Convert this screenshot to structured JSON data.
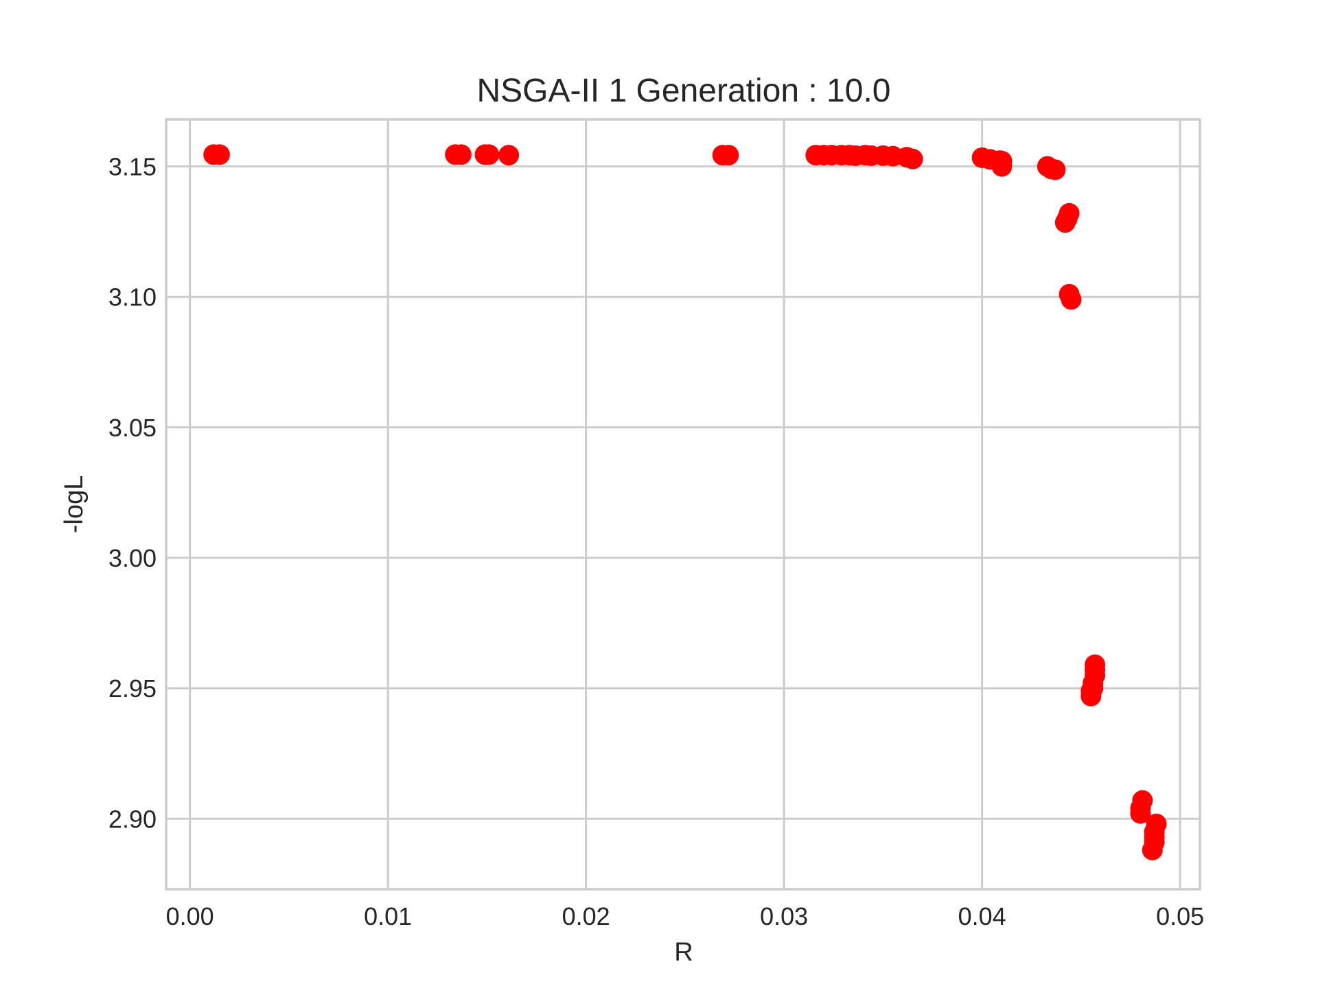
{
  "chart_data": {
    "type": "scatter",
    "title": "NSGA-II 1 Generation : 10.0",
    "xlabel": "R",
    "ylabel": "-logL",
    "xlim": [
      -0.0012,
      0.051
    ],
    "ylim": [
      2.873,
      3.168
    ],
    "xticks": [
      0.0,
      0.01,
      0.02,
      0.03,
      0.04,
      0.05
    ],
    "xtick_labels": [
      "0.00",
      "0.01",
      "0.02",
      "0.03",
      "0.04",
      "0.05"
    ],
    "yticks": [
      2.9,
      2.95,
      3.0,
      3.05,
      3.1,
      3.15
    ],
    "ytick_labels": [
      "2.90",
      "2.95",
      "3.00",
      "3.05",
      "3.10",
      "3.15"
    ],
    "grid": true,
    "legend": null,
    "marker_color": "#ff0000",
    "series": [
      {
        "x": [
          0.0012,
          0.0015,
          0.0134,
          0.0137,
          0.0149,
          0.0151,
          0.0161,
          0.0269,
          0.0272,
          0.0316,
          0.032,
          0.0324,
          0.0329,
          0.0333,
          0.0336,
          0.0341,
          0.0344,
          0.035,
          0.0355,
          0.0362,
          0.0365,
          0.04,
          0.0404,
          0.0409,
          0.041,
          0.041,
          0.0433,
          0.0435,
          0.0437,
          0.0442,
          0.0443,
          0.0444,
          0.0444,
          0.0445,
          0.0455,
          0.0455,
          0.0456,
          0.0456,
          0.0457,
          0.0457,
          0.0457,
          0.048,
          0.048,
          0.0481,
          0.0486,
          0.0487,
          0.0487,
          0.0487,
          0.0488
        ],
        "y": [
          3.1545,
          3.1545,
          3.1545,
          3.1545,
          3.1545,
          3.1545,
          3.1543,
          3.1543,
          3.1543,
          3.1543,
          3.1543,
          3.1543,
          3.1543,
          3.1543,
          3.1541,
          3.1543,
          3.1541,
          3.1541,
          3.1539,
          3.1535,
          3.1528,
          3.1533,
          3.1527,
          3.1522,
          3.15,
          3.152,
          3.15,
          3.149,
          3.1487,
          3.1285,
          3.13,
          3.132,
          3.101,
          3.099,
          2.947,
          2.949,
          2.95,
          2.952,
          2.955,
          2.957,
          2.959,
          2.902,
          2.904,
          2.907,
          2.888,
          2.891,
          2.893,
          2.895,
          2.898
        ]
      }
    ]
  }
}
